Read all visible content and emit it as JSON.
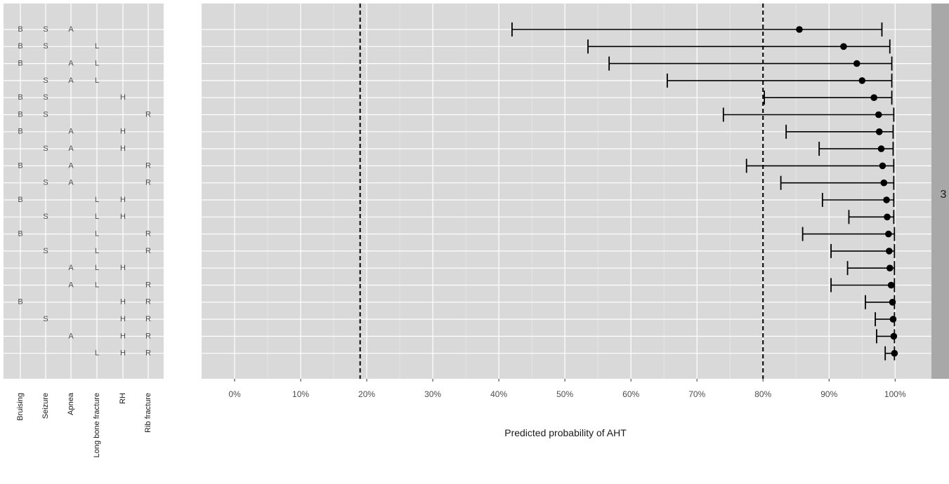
{
  "chart_data": {
    "type": "forest",
    "xlabel": "Predicted probability of AHT",
    "x_ticks": [
      "0%",
      "10%",
      "20%",
      "30%",
      "40%",
      "50%",
      "60%",
      "70%",
      "80%",
      "90%",
      "100%"
    ],
    "xlim": [
      -0.05,
      1.055
    ],
    "reference_lines": [
      0.19,
      0.8
    ],
    "facet_label": "3",
    "feature_columns": [
      {
        "name": "Bruising",
        "code": "B"
      },
      {
        "name": "Seizure",
        "code": "S"
      },
      {
        "name": "Apnea",
        "code": "A"
      },
      {
        "name": "Long bone fracture",
        "code": "L"
      },
      {
        "name": "RH",
        "code": "H"
      },
      {
        "name": "Rib fracture",
        "code": "R"
      }
    ],
    "rows": [
      {
        "features": [
          "B",
          "S",
          "A",
          "",
          "",
          ""
        ],
        "estimate": 0.855,
        "lower": 0.42,
        "upper": 0.98
      },
      {
        "features": [
          "B",
          "S",
          "",
          "L",
          "",
          ""
        ],
        "estimate": 0.922,
        "lower": 0.535,
        "upper": 0.992
      },
      {
        "features": [
          "B",
          "",
          "A",
          "L",
          "",
          ""
        ],
        "estimate": 0.942,
        "lower": 0.567,
        "upper": 0.995
      },
      {
        "features": [
          "",
          "S",
          "A",
          "L",
          "",
          ""
        ],
        "estimate": 0.95,
        "lower": 0.655,
        "upper": 0.995
      },
      {
        "features": [
          "B",
          "S",
          "",
          "",
          "H",
          ""
        ],
        "estimate": 0.968,
        "lower": 0.802,
        "upper": 0.995
      },
      {
        "features": [
          "B",
          "S",
          "",
          "",
          "",
          "R"
        ],
        "estimate": 0.975,
        "lower": 0.74,
        "upper": 0.998
      },
      {
        "features": [
          "B",
          "",
          "A",
          "",
          "H",
          ""
        ],
        "estimate": 0.976,
        "lower": 0.835,
        "upper": 0.997
      },
      {
        "features": [
          "",
          "S",
          "A",
          "",
          "H",
          ""
        ],
        "estimate": 0.979,
        "lower": 0.885,
        "upper": 0.997
      },
      {
        "features": [
          "B",
          "",
          "A",
          "",
          "",
          "R"
        ],
        "estimate": 0.981,
        "lower": 0.775,
        "upper": 0.998
      },
      {
        "features": [
          "",
          "S",
          "A",
          "",
          "",
          "R"
        ],
        "estimate": 0.983,
        "lower": 0.827,
        "upper": 0.998
      },
      {
        "features": [
          "B",
          "",
          "",
          "L",
          "H",
          ""
        ],
        "estimate": 0.987,
        "lower": 0.89,
        "upper": 0.998
      },
      {
        "features": [
          "",
          "S",
          "",
          "L",
          "H",
          ""
        ],
        "estimate": 0.988,
        "lower": 0.93,
        "upper": 0.998
      },
      {
        "features": [
          "B",
          "",
          "",
          "L",
          "",
          "R"
        ],
        "estimate": 0.99,
        "lower": 0.86,
        "upper": 0.999
      },
      {
        "features": [
          "",
          "S",
          "",
          "L",
          "",
          "R"
        ],
        "estimate": 0.991,
        "lower": 0.903,
        "upper": 0.999
      },
      {
        "features": [
          "",
          "",
          "A",
          "L",
          "H",
          ""
        ],
        "estimate": 0.992,
        "lower": 0.928,
        "upper": 0.999
      },
      {
        "features": [
          "",
          "",
          "A",
          "L",
          "",
          "R"
        ],
        "estimate": 0.994,
        "lower": 0.903,
        "upper": 0.999
      },
      {
        "features": [
          "B",
          "",
          "",
          "",
          "H",
          "R"
        ],
        "estimate": 0.996,
        "lower": 0.955,
        "upper": 0.999
      },
      {
        "features": [
          "",
          "S",
          "",
          "",
          "H",
          "R"
        ],
        "estimate": 0.997,
        "lower": 0.97,
        "upper": 0.999
      },
      {
        "features": [
          "",
          "",
          "A",
          "",
          "H",
          "R"
        ],
        "estimate": 0.998,
        "lower": 0.972,
        "upper": 0.999
      },
      {
        "features": [
          "",
          "",
          "",
          "L",
          "H",
          "R"
        ],
        "estimate": 0.999,
        "lower": 0.985,
        "upper": 0.999
      }
    ]
  }
}
